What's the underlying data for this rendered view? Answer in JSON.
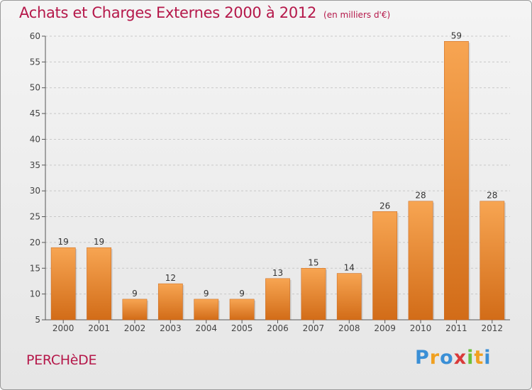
{
  "header": {
    "title": "Achats et Charges Externes 2000 à 2012",
    "subtitle": "(en milliers d'€)"
  },
  "footer": {
    "city": "PERCHèDE",
    "logo": {
      "letters": [
        "P",
        "r",
        "o",
        "x",
        "i",
        "t",
        "i"
      ],
      "colors": [
        "#3a8fd6",
        "#f0a020",
        "#3a8fd6",
        "#d93a3a",
        "#6bbf3a",
        "#f0a020",
        "#3a8fd6"
      ]
    }
  },
  "chart_data": {
    "type": "bar",
    "title": "Achats et Charges Externes 2000 à 2012",
    "subtitle": "(en milliers d'€)",
    "categories": [
      "2000",
      "2001",
      "2002",
      "2003",
      "2004",
      "2005",
      "2006",
      "2007",
      "2008",
      "2009",
      "2010",
      "2011",
      "2012"
    ],
    "values": [
      19,
      19,
      9,
      12,
      9,
      9,
      13,
      15,
      14,
      26,
      28,
      59,
      28
    ],
    "ylim": [
      5,
      60
    ],
    "yticks": [
      5,
      10,
      15,
      20,
      25,
      30,
      35,
      40,
      45,
      50,
      55,
      60
    ],
    "grid": true,
    "bar_color": "#f0923a",
    "bar_color_dark": "#d06a18"
  }
}
